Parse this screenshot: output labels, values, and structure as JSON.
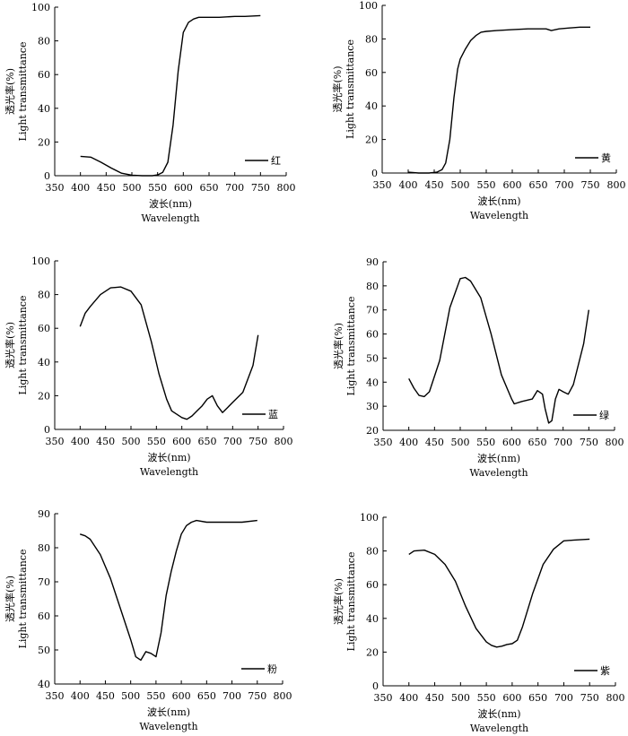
{
  "chart_data": [
    {
      "type": "line",
      "legend": "红",
      "ylabel_cn": "透光率(%)",
      "ylabel_en": "Light transmittance",
      "xlabel_cn": "波长(nm)",
      "xlabel_en": "Wavelength",
      "xlim": [
        350,
        800
      ],
      "ylim": [
        0,
        100
      ],
      "xticks": [
        350,
        400,
        450,
        500,
        550,
        600,
        650,
        700,
        750,
        800
      ],
      "yticks": [
        0,
        20,
        40,
        60,
        80,
        100
      ],
      "grid": false,
      "legend_position": "right",
      "series": [
        {
          "x": [
            400,
            420,
            440,
            460,
            480,
            500,
            520,
            540,
            550,
            560,
            570,
            580,
            590,
            600,
            610,
            620,
            630,
            640,
            650,
            670,
            700,
            720,
            750
          ],
          "y": [
            11.5,
            11,
            8,
            4.5,
            1.5,
            0.3,
            0,
            0,
            0.5,
            2,
            8,
            30,
            62,
            85,
            91,
            93,
            94,
            94,
            94,
            94,
            94.5,
            94.5,
            95
          ]
        }
      ]
    },
    {
      "type": "line",
      "legend": "黄",
      "ylabel_cn": "透光率(%)",
      "ylabel_en": "Light transmittance",
      "xlabel_cn": "波长(nm)",
      "xlabel_en": "Wavelength",
      "xlim": [
        350,
        800
      ],
      "ylim": [
        0,
        100
      ],
      "xticks": [
        350,
        400,
        450,
        500,
        550,
        600,
        650,
        700,
        750,
        800
      ],
      "yticks": [
        0,
        20,
        40,
        60,
        80,
        100
      ],
      "grid": false,
      "legend_position": "right",
      "series": [
        {
          "x": [
            400,
            420,
            440,
            455,
            465,
            472,
            480,
            488,
            495,
            500,
            510,
            520,
            530,
            540,
            550,
            570,
            600,
            630,
            650,
            665,
            675,
            690,
            710,
            730,
            750
          ],
          "y": [
            0.5,
            0,
            0,
            0.5,
            2,
            6,
            20,
            45,
            62,
            68,
            74,
            79,
            82,
            84,
            84.5,
            85,
            85.5,
            86,
            86,
            86,
            85,
            86,
            86.5,
            87,
            87
          ]
        }
      ]
    },
    {
      "type": "line",
      "legend": "蓝",
      "ylabel_cn": "透光率(%)",
      "ylabel_en": "Light transmittance",
      "xlabel_cn": "波长(nm)",
      "xlabel_en": "Wavelength",
      "xlim": [
        350,
        800
      ],
      "ylim": [
        0,
        100
      ],
      "xticks": [
        350,
        400,
        450,
        500,
        550,
        600,
        650,
        700,
        750,
        800
      ],
      "yticks": [
        0,
        20,
        40,
        60,
        80,
        100
      ],
      "grid": false,
      "legend_position": "right",
      "series": [
        {
          "x": [
            400,
            410,
            420,
            440,
            460,
            480,
            500,
            520,
            540,
            555,
            570,
            580,
            590,
            600,
            610,
            620,
            630,
            640,
            650,
            660,
            670,
            680,
            690,
            700,
            720,
            740,
            750
          ],
          "y": [
            61,
            69,
            73,
            80,
            84,
            84.5,
            82,
            74,
            52,
            33,
            18,
            11,
            9,
            7,
            6,
            8,
            11,
            14,
            18,
            20,
            14,
            10,
            13,
            16,
            22,
            38,
            56
          ]
        }
      ]
    },
    {
      "type": "line",
      "legend": "绿",
      "ylabel_cn": "透光率(%)",
      "ylabel_en": "Light transmittance",
      "xlabel_cn": "波长(nm)",
      "xlabel_en": "Wavelength",
      "xlim": [
        350,
        800
      ],
      "ylim": [
        20,
        90
      ],
      "xticks": [
        350,
        400,
        450,
        500,
        550,
        600,
        650,
        700,
        750,
        800
      ],
      "yticks": [
        20,
        30,
        40,
        50,
        60,
        70,
        80,
        90
      ],
      "grid": false,
      "legend_position": "right",
      "series": [
        {
          "x": [
            400,
            410,
            420,
            430,
            440,
            460,
            480,
            500,
            510,
            520,
            540,
            560,
            580,
            600,
            605,
            620,
            640,
            650,
            660,
            665,
            672,
            678,
            685,
            692,
            700,
            710,
            720,
            740,
            750
          ],
          "y": [
            41.5,
            37.5,
            34.5,
            34,
            36,
            49,
            71,
            83,
            83.5,
            82,
            75,
            60,
            43,
            33,
            31,
            32,
            33,
            36.5,
            35,
            29,
            23,
            24,
            33,
            37,
            36,
            35,
            39,
            56,
            70
          ]
        }
      ]
    },
    {
      "type": "line",
      "legend": "粉",
      "ylabel_cn": "透光率(%)",
      "ylabel_en": "Light transmittance",
      "xlabel_cn": "波长(nm)",
      "xlabel_en": "Wavelength",
      "xlim": [
        350,
        800
      ],
      "ylim": [
        40,
        90
      ],
      "xticks": [
        350,
        400,
        450,
        500,
        550,
        600,
        650,
        700,
        750,
        800
      ],
      "yticks": [
        40,
        50,
        60,
        70,
        80,
        90
      ],
      "grid": false,
      "legend_position": "right",
      "series": [
        {
          "x": [
            400,
            410,
            420,
            440,
            460,
            480,
            500,
            510,
            520,
            530,
            540,
            550,
            560,
            570,
            580,
            590,
            600,
            610,
            620,
            630,
            650,
            680,
            700,
            720,
            750
          ],
          "y": [
            84,
            83.5,
            82.5,
            78,
            71,
            62,
            53,
            48,
            47,
            49.5,
            49,
            48,
            55,
            66,
            73,
            79,
            84,
            86.5,
            87.5,
            88,
            87.5,
            87.5,
            87.5,
            87.5,
            88
          ]
        }
      ]
    },
    {
      "type": "line",
      "legend": "紫",
      "ylabel_cn": "透光率(%)",
      "ylabel_en": "Light transmittance",
      "xlabel_cn": "波长(nm)",
      "xlabel_en": "Wavelength",
      "xlim": [
        350,
        800
      ],
      "ylim": [
        0,
        100
      ],
      "xticks": [
        350,
        400,
        450,
        500,
        550,
        600,
        650,
        700,
        750,
        800
      ],
      "yticks": [
        0,
        20,
        40,
        60,
        80,
        100
      ],
      "grid": false,
      "legend_position": "right",
      "series": [
        {
          "x": [
            400,
            410,
            430,
            450,
            470,
            490,
            510,
            530,
            550,
            560,
            570,
            580,
            590,
            600,
            610,
            620,
            640,
            660,
            680,
            700,
            720,
            750
          ],
          "y": [
            78,
            80,
            80.5,
            78,
            72,
            62,
            47,
            34,
            26,
            24,
            23,
            23.5,
            24.5,
            25,
            27,
            35,
            55,
            72,
            81,
            86,
            86.5,
            87
          ]
        }
      ]
    }
  ]
}
